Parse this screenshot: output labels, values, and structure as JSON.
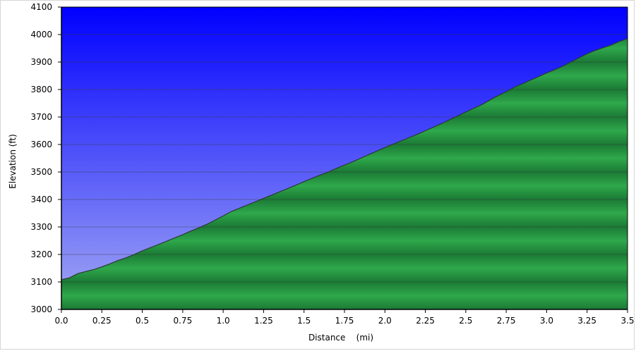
{
  "chart_data": {
    "type": "area",
    "title": "",
    "xlabel": "Distance    (mi)",
    "ylabel": "Elevation (ft)",
    "xlim": [
      0,
      3.5
    ],
    "ylim": [
      3000,
      4100
    ],
    "x_ticks": [
      "0.0",
      "0.25",
      "0.5",
      "0.75",
      "1.0",
      "1.25",
      "1.5",
      "1.75",
      "2.0",
      "2.25",
      "2.5",
      "2.75",
      "3.0",
      "3.25",
      "3.5"
    ],
    "y_ticks": [
      "3000",
      "3100",
      "3200",
      "3300",
      "3400",
      "3500",
      "3600",
      "3700",
      "3800",
      "3900",
      "4000",
      "4100"
    ],
    "grid": true,
    "colors": {
      "sky_top": "#0000ff",
      "sky_bottom": "#a3a9f3",
      "fill_light": "#2fa84b",
      "fill_dark": "#1b7a35",
      "line": "#2b3a33",
      "grid": "#3a3a3a"
    },
    "series": [
      {
        "x": [
          0.0,
          0.05,
          0.1,
          0.15,
          0.2,
          0.25,
          0.3,
          0.35,
          0.4,
          0.45,
          0.5,
          0.55,
          0.6,
          0.65,
          0.7,
          0.75,
          0.8,
          0.85,
          0.9,
          0.95,
          1.0,
          1.05,
          1.1,
          1.15,
          1.2,
          1.25,
          1.3,
          1.35,
          1.4,
          1.45,
          1.5,
          1.55,
          1.6,
          1.65,
          1.7,
          1.75,
          1.8,
          1.85,
          1.9,
          1.95,
          2.0,
          2.05,
          2.1,
          2.15,
          2.2,
          2.25,
          2.3,
          2.35,
          2.4,
          2.45,
          2.5,
          2.55,
          2.6,
          2.65,
          2.7,
          2.75,
          2.8,
          2.85,
          2.9,
          2.95,
          3.0,
          3.05,
          3.1,
          3.15,
          3.2,
          3.25,
          3.3,
          3.35,
          3.4,
          3.45,
          3.5
        ],
        "values": [
          3108,
          3115,
          3130,
          3138,
          3145,
          3155,
          3166,
          3178,
          3188,
          3200,
          3213,
          3225,
          3236,
          3248,
          3260,
          3272,
          3285,
          3297,
          3310,
          3325,
          3340,
          3356,
          3368,
          3380,
          3392,
          3404,
          3416,
          3428,
          3440,
          3452,
          3465,
          3477,
          3489,
          3500,
          3513,
          3525,
          3537,
          3550,
          3563,
          3576,
          3589,
          3601,
          3613,
          3625,
          3637,
          3650,
          3663,
          3676,
          3690,
          3704,
          3718,
          3732,
          3745,
          3762,
          3778,
          3792,
          3808,
          3821,
          3834,
          3847,
          3860,
          3872,
          3885,
          3900,
          3915,
          3930,
          3942,
          3952,
          3962,
          3975,
          3985
        ]
      }
    ]
  }
}
